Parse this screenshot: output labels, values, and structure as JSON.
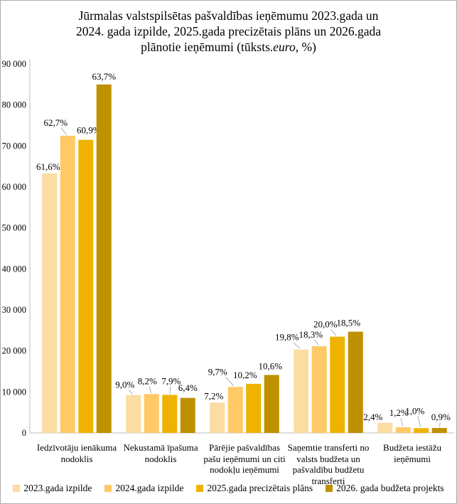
{
  "chart_data": {
    "type": "bar",
    "title_line1": "Jūrmalas valstspilsētas pašvaldības ieņēmumu 2023.gada un",
    "title_line2": "2024. gada izpilde, 2025.gada precizētais plāns un 2026.gada",
    "title_line3_pre": "plānotie ieņēmumi (tūksts.",
    "title_line3_italic": "euro",
    "title_line3_post": ", %)",
    "unit": "tūksts. euro, %",
    "categories": [
      "Iedzīvotāju ienākuma nodoklis",
      "Nekustamā īpašuma nodoklis",
      "Pārējie pašvaldības pašu ieņēmumi un citi nodokļu ieņēmumi",
      "Saņemtie transferti no valsts budžeta un pašvaldību budžetu transferti",
      "Budžeta iestāžu ieņēmumi"
    ],
    "series": [
      {
        "name": "2023.gada izpilde",
        "color": "#FBDCA2",
        "values": [
          63300,
          9250,
          7400,
          20350,
          2470
        ],
        "pct_labels": [
          "61,6%",
          "9,0%",
          "7,2%",
          "19,8%",
          "2,4%"
        ]
      },
      {
        "name": "2024.gada izpilde",
        "color": "#FFC966",
        "values": [
          72500,
          9480,
          11220,
          21160,
          1390
        ],
        "pct_labels": [
          "62,7%",
          "8,2%",
          "9,7%",
          "18,3%",
          "1,2%"
        ]
      },
      {
        "name": "2025.gada precizētais plāns",
        "color": "#EFB200",
        "values": [
          71500,
          9280,
          11980,
          23480,
          1170
        ],
        "pct_labels": [
          "60,9%",
          "7,9%",
          "10,2%",
          "20,0%",
          "1,0%"
        ]
      },
      {
        "name": "2026. gada budžeta projekts",
        "color": "#BF9000",
        "values": [
          85000,
          8540,
          14140,
          24690,
          1200
        ],
        "pct_labels": [
          "63,7%",
          "6,4%",
          "10,6%",
          "18,5%",
          "0,9%"
        ]
      }
    ],
    "y_axis": {
      "min": 0,
      "max": 90000,
      "step": 10000,
      "tick_labels": [
        "0",
        "10 000",
        "20 000",
        "30 000",
        "40 000",
        "50 000",
        "60 000",
        "70 000",
        "80 000",
        "90 000"
      ]
    },
    "layout_hints": {
      "legend_position": "bottom",
      "grid": false,
      "axis_color": "#BFBFBF",
      "leader_color": "#A6A6A6",
      "label_offsets": [
        [
          [
            -2,
            -5,
            0
          ],
          [
            -12,
            -10,
            1
          ],
          [
            -5,
            -5,
            0
          ],
          [
            -20,
            -13,
            1
          ],
          [
            -17,
            -4,
            0
          ]
        ],
        [
          [
            -17,
            -14,
            1
          ],
          [
            -6,
            -14,
            1
          ],
          [
            -25,
            -17,
            1
          ],
          [
            -12,
            -12,
            1
          ],
          [
            -6,
            -16,
            1
          ]
        ],
        [
          [
            4,
            -9,
            0
          ],
          [
            2,
            -15,
            1
          ],
          [
            -12,
            -8,
            0
          ],
          [
            -17,
            -13,
            1
          ],
          [
            -9,
            -20,
            1
          ]
        ],
        [
          [
            0,
            -7,
            0
          ],
          [
            0,
            -10,
            0
          ],
          [
            -2,
            -8,
            0
          ],
          [
            -10,
            -8,
            0
          ],
          [
            2,
            -11,
            1
          ]
        ]
      ]
    }
  }
}
